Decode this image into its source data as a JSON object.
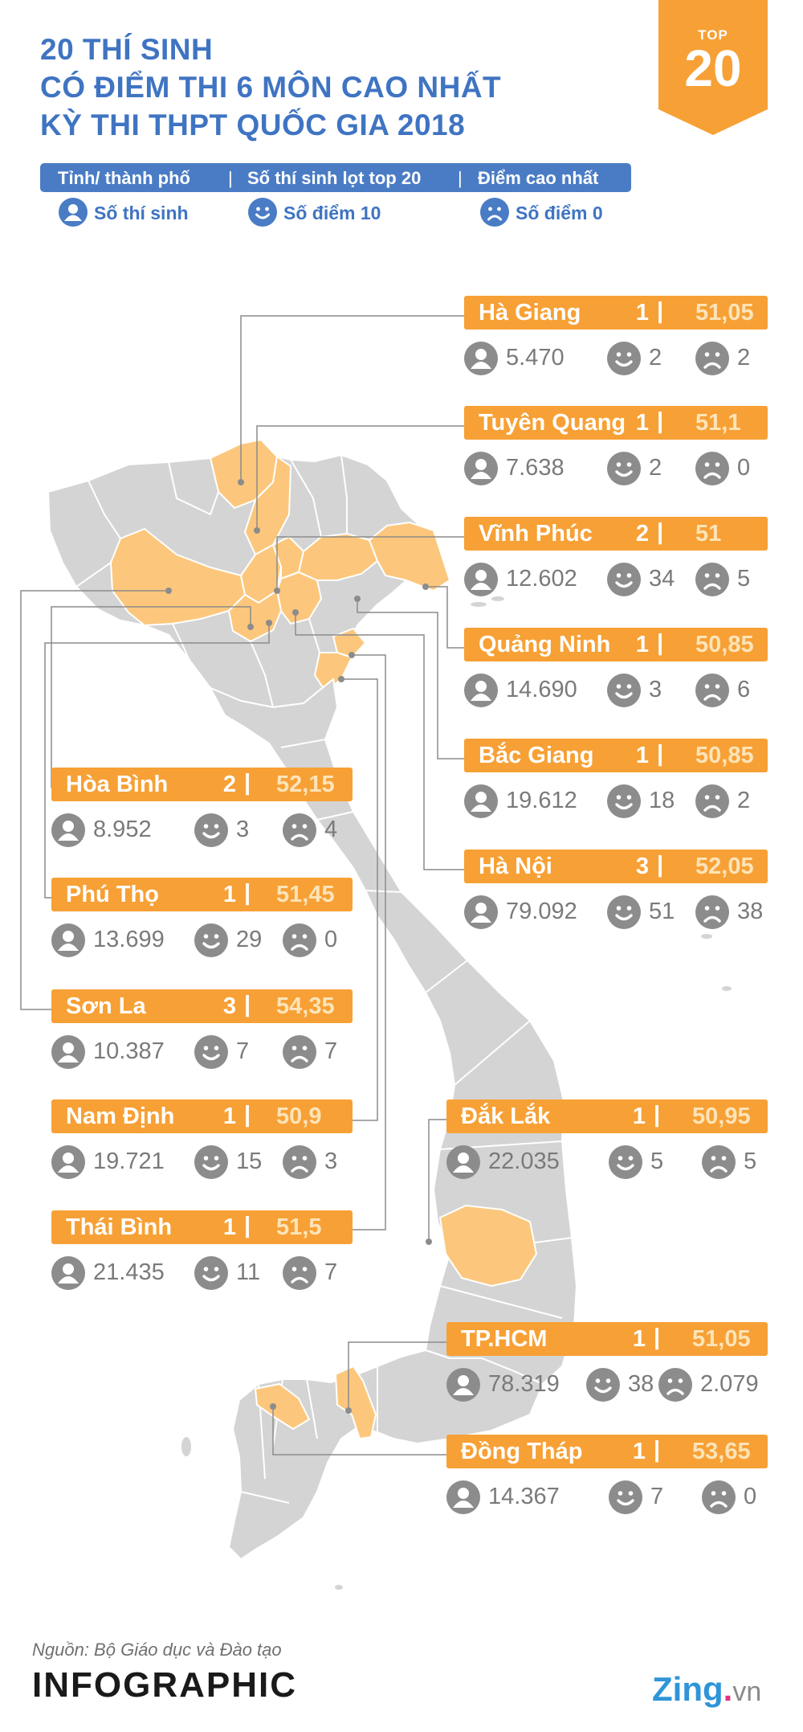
{
  "title_lines": [
    "20 THÍ SINH",
    "CÓ ĐIỂM THI 6 MÔN CAO NHẤT",
    "KỲ THI THPT QUỐC GIA 2018"
  ],
  "badge": {
    "top": "TOP",
    "number": "20"
  },
  "legend": {
    "province": "Tỉnh/ thành phố",
    "sep": "|",
    "top20_count": "Số thí sinh lọt top 20",
    "max_score": "Điểm cao nhất",
    "candidates": "Số thí sinh",
    "ten_points": "Số điểm 10",
    "zero_points": "Số điểm 0"
  },
  "icons": {
    "candidates": "person-icon",
    "ten_points": "smile-icon",
    "zero_points": "frown-icon"
  },
  "colors": {
    "title_blue": "#3f74c2",
    "orange": "#f7a035",
    "score_light": "#fde4b8",
    "map_gray": "#d4d4d4",
    "map_highlight": "#fcc77c",
    "icon_gray": "#8c8c8c"
  },
  "provinces": [
    {
      "name": "Hà Giang",
      "count": "1",
      "score": "51,05",
      "candidates": "5.470",
      "tens": "2",
      "zeros": "2"
    },
    {
      "name": "Tuyên Quang",
      "count": "1",
      "score": "51,1",
      "candidates": "7.638",
      "tens": "2",
      "zeros": "0"
    },
    {
      "name": "Vĩnh Phúc",
      "count": "2",
      "score": "51",
      "candidates": "12.602",
      "tens": "34",
      "zeros": "5"
    },
    {
      "name": "Quảng Ninh",
      "count": "1",
      "score": "50,85",
      "candidates": "14.690",
      "tens": "3",
      "zeros": "6"
    },
    {
      "name": "Bắc Giang",
      "count": "1",
      "score": "50,85",
      "candidates": "19.612",
      "tens": "18",
      "zeros": "2"
    },
    {
      "name": "Hà Nội",
      "count": "3",
      "score": "52,05",
      "candidates": "79.092",
      "tens": "51",
      "zeros": "38"
    },
    {
      "name": "Hòa Bình",
      "count": "2",
      "score": "52,15",
      "candidates": "8.952",
      "tens": "3",
      "zeros": "4"
    },
    {
      "name": "Phú Thọ",
      "count": "1",
      "score": "51,45",
      "candidates": "13.699",
      "tens": "29",
      "zeros": "0"
    },
    {
      "name": "Sơn La",
      "count": "3",
      "score": "54,35",
      "candidates": "10.387",
      "tens": "7",
      "zeros": "7"
    },
    {
      "name": "Nam Định",
      "count": "1",
      "score": "50,9",
      "candidates": "19.721",
      "tens": "15",
      "zeros": "3"
    },
    {
      "name": "Thái Bình",
      "count": "1",
      "score": "51,5",
      "candidates": "21.435",
      "tens": "11",
      "zeros": "7"
    },
    {
      "name": "Đắk Lắk",
      "count": "1",
      "score": "50,95",
      "candidates": "22.035",
      "tens": "5",
      "zeros": "5"
    },
    {
      "name": "TP.HCM",
      "count": "1",
      "score": "51,05",
      "candidates": "78.319",
      "tens": "38",
      "zeros": "2.079"
    },
    {
      "name": "Đồng Tháp",
      "count": "1",
      "score": "53,65",
      "candidates": "14.367",
      "tens": "7",
      "zeros": "0"
    }
  ],
  "source": "Nguồn: Bộ Giáo dục và Đào tạo",
  "brand": "INFOGRAPHIC",
  "logo": {
    "name": "Zing",
    "dot": ".",
    "tld": "vn"
  }
}
